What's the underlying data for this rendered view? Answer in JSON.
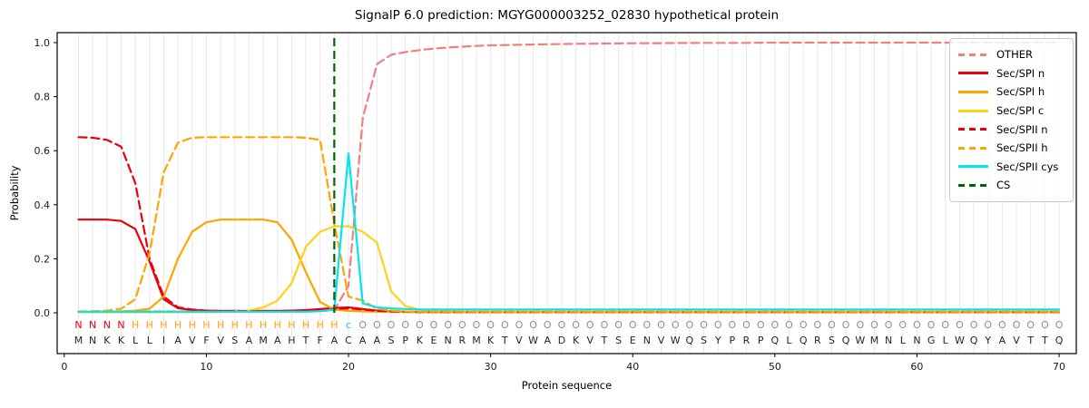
{
  "chart_data": {
    "type": "line",
    "title": "SignalP 6.0 prediction: MGYG000003252_02830 hypothetical protein",
    "xlabel": "Protein sequence",
    "ylabel": "Probability",
    "xticks": [
      0,
      10,
      20,
      30,
      40,
      50,
      60,
      70
    ],
    "yticks": [
      0.0,
      0.2,
      0.4,
      0.6,
      0.8,
      1.0
    ],
    "xlim": [
      -0.5,
      71.2
    ],
    "ylim": [
      -0.15,
      1.04
    ],
    "grid": "light vertical gridline at every residue position 1-70",
    "legend_position": "upper right",
    "x_start": 1,
    "series": [
      {
        "name": "OTHER",
        "color": "#f08080",
        "dash": true,
        "values": [
          0.005,
          0.005,
          0.005,
          0.005,
          0.005,
          0.005,
          0.005,
          0.005,
          0.005,
          0.005,
          0.005,
          0.005,
          0.005,
          0.005,
          0.005,
          0.005,
          0.005,
          0.006,
          0.01,
          0.1,
          0.72,
          0.92,
          0.955,
          0.965,
          0.972,
          0.978,
          0.982,
          0.985,
          0.988,
          0.99,
          0.991,
          0.992,
          0.993,
          0.994,
          0.995,
          0.9955,
          0.996,
          0.9965,
          0.997,
          0.9975,
          0.998,
          0.998,
          0.9985,
          0.9985,
          0.999,
          0.999,
          0.999,
          0.999,
          0.9995,
          1.0,
          1.0,
          1.0,
          1.0,
          1.0,
          1.0,
          1.0,
          1.0,
          1.0,
          1.0,
          1.0,
          1.0,
          1.0,
          1.0,
          1.0,
          1.0,
          1.0,
          1.0,
          1.0,
          1.0,
          1.0
        ]
      },
      {
        "name": "Sec/SPI n",
        "color": "#e8000d",
        "dash": false,
        "values": [
          0.345,
          0.345,
          0.345,
          0.34,
          0.31,
          0.19,
          0.05,
          0.017,
          0.01,
          0.008,
          0.007,
          0.007,
          0.007,
          0.007,
          0.007,
          0.008,
          0.01,
          0.014,
          0.018,
          0.02,
          0.014,
          0.008,
          0.005,
          0.004,
          0.003,
          0.003,
          0.003,
          0.003,
          0.003,
          0.003,
          0.003,
          0.003,
          0.003,
          0.003,
          0.003,
          0.003,
          0.003,
          0.003,
          0.003,
          0.003,
          0.003,
          0.003,
          0.003,
          0.003,
          0.003,
          0.003,
          0.003,
          0.003,
          0.003,
          0.003,
          0.003,
          0.003,
          0.003,
          0.003,
          0.003,
          0.003,
          0.003,
          0.003,
          0.003,
          0.003,
          0.003,
          0.003,
          0.003,
          0.003,
          0.003,
          0.003,
          0.003,
          0.003,
          0.003,
          0.003
        ]
      },
      {
        "name": "Sec/SPI h",
        "color": "#ffa400",
        "dash": false,
        "values": [
          0.003,
          0.003,
          0.004,
          0.005,
          0.008,
          0.015,
          0.06,
          0.2,
          0.3,
          0.335,
          0.345,
          0.345,
          0.345,
          0.345,
          0.335,
          0.27,
          0.15,
          0.04,
          0.012,
          0.007,
          0.005,
          0.004,
          0.004,
          0.003,
          0.003,
          0.003,
          0.003,
          0.003,
          0.003,
          0.003,
          0.003,
          0.003,
          0.003,
          0.003,
          0.003,
          0.003,
          0.003,
          0.003,
          0.003,
          0.003,
          0.003,
          0.003,
          0.003,
          0.003,
          0.003,
          0.003,
          0.003,
          0.003,
          0.003,
          0.003,
          0.003,
          0.003,
          0.003,
          0.003,
          0.003,
          0.003,
          0.003,
          0.003,
          0.003,
          0.003,
          0.003,
          0.003,
          0.003,
          0.003,
          0.003,
          0.003,
          0.003,
          0.003,
          0.003,
          0.003
        ]
      },
      {
        "name": "Sec/SPI c",
        "color": "#ffd117",
        "dash": false,
        "values": [
          0.002,
          0.002,
          0.002,
          0.002,
          0.002,
          0.002,
          0.002,
          0.002,
          0.003,
          0.003,
          0.003,
          0.005,
          0.009,
          0.02,
          0.045,
          0.11,
          0.245,
          0.3,
          0.32,
          0.32,
          0.3,
          0.26,
          0.08,
          0.025,
          0.012,
          0.007,
          0.005,
          0.004,
          0.004,
          0.004,
          0.004,
          0.004,
          0.004,
          0.004,
          0.004,
          0.004,
          0.004,
          0.004,
          0.004,
          0.004,
          0.004,
          0.004,
          0.004,
          0.004,
          0.004,
          0.004,
          0.004,
          0.004,
          0.004,
          0.004,
          0.004,
          0.004,
          0.004,
          0.004,
          0.004,
          0.004,
          0.004,
          0.004,
          0.004,
          0.004,
          0.004,
          0.004,
          0.004,
          0.004,
          0.004,
          0.004,
          0.004,
          0.004,
          0.004,
          0.004
        ]
      },
      {
        "name": "Sec/SPII n",
        "color": "#e8000d",
        "dash": true,
        "values": [
          0.65,
          0.648,
          0.64,
          0.615,
          0.48,
          0.2,
          0.06,
          0.02,
          0.012,
          0.008,
          0.006,
          0.006,
          0.006,
          0.006,
          0.006,
          0.007,
          0.008,
          0.01,
          0.014,
          0.016,
          0.012,
          0.007,
          0.005,
          0.004,
          0.003,
          0.003,
          0.003,
          0.003,
          0.003,
          0.003,
          0.003,
          0.003,
          0.003,
          0.003,
          0.003,
          0.003,
          0.003,
          0.003,
          0.003,
          0.003,
          0.003,
          0.003,
          0.003,
          0.003,
          0.003,
          0.003,
          0.003,
          0.003,
          0.003,
          0.003,
          0.003,
          0.003,
          0.003,
          0.003,
          0.003,
          0.003,
          0.003,
          0.003,
          0.003,
          0.003,
          0.003,
          0.003,
          0.003,
          0.003,
          0.003,
          0.003,
          0.003,
          0.003,
          0.003,
          0.003
        ]
      },
      {
        "name": "Sec/SPII h",
        "color": "#ffa400",
        "dash": true,
        "values": [
          0.004,
          0.006,
          0.008,
          0.015,
          0.05,
          0.22,
          0.52,
          0.63,
          0.648,
          0.65,
          0.65,
          0.65,
          0.65,
          0.65,
          0.65,
          0.65,
          0.648,
          0.64,
          0.33,
          0.06,
          0.045,
          0.015,
          0.008,
          0.005,
          0.004,
          0.004,
          0.004,
          0.004,
          0.004,
          0.004,
          0.004,
          0.004,
          0.004,
          0.004,
          0.004,
          0.004,
          0.004,
          0.004,
          0.004,
          0.004,
          0.004,
          0.004,
          0.004,
          0.004,
          0.004,
          0.004,
          0.004,
          0.004,
          0.004,
          0.004,
          0.004,
          0.004,
          0.004,
          0.004,
          0.004,
          0.004,
          0.004,
          0.004,
          0.004,
          0.004,
          0.004,
          0.004,
          0.004,
          0.004,
          0.004,
          0.004,
          0.004,
          0.004,
          0.004,
          0.004
        ]
      },
      {
        "name": "Sec/SPII cys",
        "color": "#00e5f0",
        "dash": false,
        "values": [
          0.004,
          0.004,
          0.004,
          0.004,
          0.004,
          0.004,
          0.004,
          0.004,
          0.004,
          0.004,
          0.004,
          0.004,
          0.004,
          0.004,
          0.004,
          0.004,
          0.004,
          0.006,
          0.012,
          0.59,
          0.035,
          0.02,
          0.016,
          0.014,
          0.012,
          0.012,
          0.012,
          0.012,
          0.012,
          0.012,
          0.012,
          0.012,
          0.012,
          0.012,
          0.012,
          0.012,
          0.012,
          0.012,
          0.012,
          0.012,
          0.012,
          0.012,
          0.012,
          0.012,
          0.012,
          0.012,
          0.012,
          0.012,
          0.012,
          0.012,
          0.012,
          0.012,
          0.012,
          0.012,
          0.012,
          0.012,
          0.012,
          0.012,
          0.012,
          0.012,
          0.012,
          0.012,
          0.012,
          0.012,
          0.012,
          0.012,
          0.012,
          0.012,
          0.012,
          0.012
        ]
      }
    ],
    "cs_marker": {
      "label": "CS",
      "position": 19,
      "color": "#006400",
      "dash": true
    },
    "sequence": "MNKKLLIAVFVSAMAHTFACAASPKENRMKTVWADKVTSENVWQSYPRPQLQRSQWMNLNGLWQYAVTTQ",
    "sequence_annotation": "NNNNHHHHHHHHHHHHHHHcOOOOOOOOOOOOOOOOOOOOOOOOOOOOOOOOOOOOOOOOOOOOOOOOOO",
    "annotation_colors": {
      "N": "#e8000d",
      "H": "#ffa400",
      "c": "#00d4e0",
      "O": "#8e8e8e"
    },
    "sequence_color": "#262626"
  }
}
